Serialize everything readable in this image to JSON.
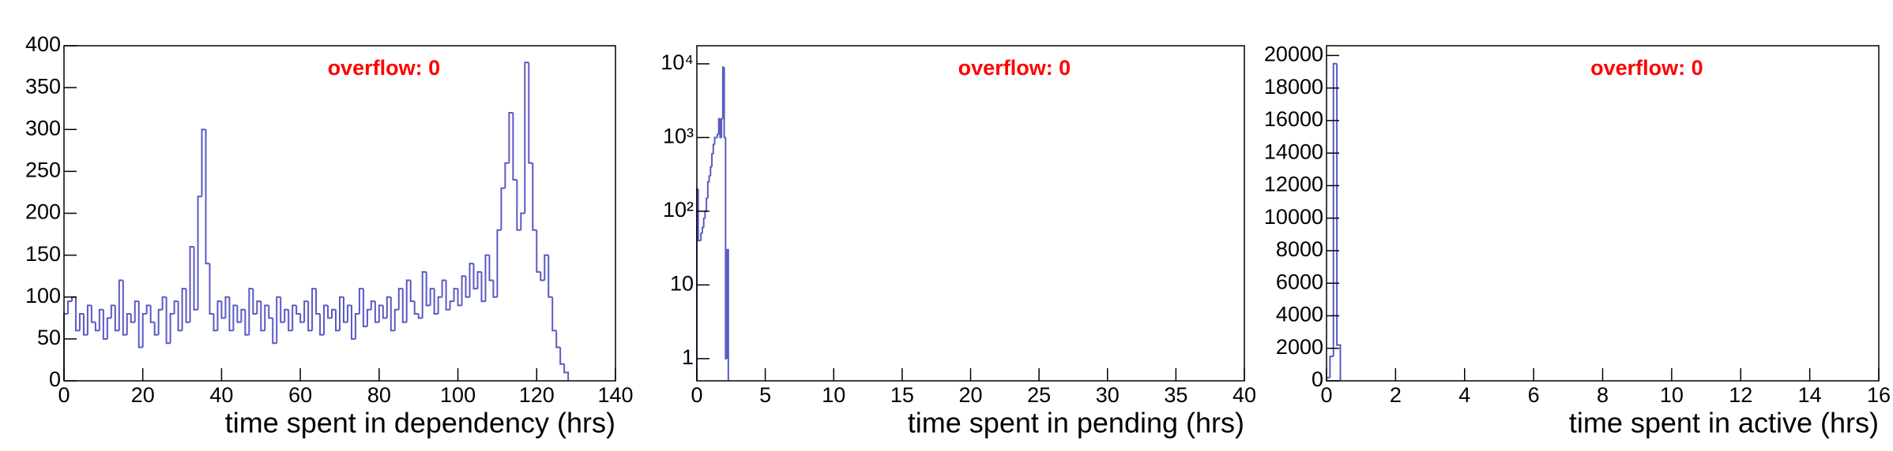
{
  "chart_data": [
    {
      "type": "histogram",
      "x_label": "time spent in dependency (hrs)",
      "annotation": "overflow: 0",
      "annotation_color": "#ff0000",
      "color": "#5a5ac4",
      "log_y": false,
      "xlim": [
        0,
        140
      ],
      "xticks": [
        0,
        20,
        40,
        60,
        80,
        100,
        120,
        140
      ],
      "ylim": [
        0,
        400
      ],
      "yticks": [
        0,
        50,
        100,
        150,
        200,
        250,
        300,
        350,
        400
      ],
      "bins": [
        0,
        1,
        2,
        3,
        4,
        5,
        6,
        7,
        8,
        9,
        10,
        11,
        12,
        13,
        14,
        15,
        16,
        17,
        18,
        19,
        20,
        21,
        22,
        23,
        24,
        25,
        26,
        27,
        28,
        29,
        30,
        31,
        32,
        33,
        34,
        35,
        36,
        37,
        38,
        39,
        40,
        41,
        42,
        43,
        44,
        45,
        46,
        47,
        48,
        49,
        50,
        51,
        52,
        53,
        54,
        55,
        56,
        57,
        58,
        59,
        60,
        61,
        62,
        63,
        64,
        65,
        66,
        67,
        68,
        69,
        70,
        71,
        72,
        73,
        74,
        75,
        76,
        77,
        78,
        79,
        80,
        81,
        82,
        83,
        84,
        85,
        86,
        87,
        88,
        89,
        90,
        91,
        92,
        93,
        94,
        95,
        96,
        97,
        98,
        99,
        100,
        101,
        102,
        103,
        104,
        105,
        106,
        107,
        108,
        109,
        110,
        111,
        112,
        113,
        114,
        115,
        116,
        117,
        118,
        119,
        120,
        121,
        122,
        123,
        124,
        125,
        126,
        127,
        128
      ],
      "values": [
        80,
        95,
        100,
        60,
        80,
        55,
        90,
        70,
        60,
        85,
        50,
        75,
        90,
        60,
        120,
        55,
        80,
        70,
        95,
        40,
        80,
        90,
        70,
        55,
        85,
        100,
        45,
        80,
        95,
        60,
        110,
        70,
        160,
        85,
        220,
        300,
        140,
        80,
        60,
        95,
        75,
        100,
        60,
        90,
        70,
        85,
        55,
        110,
        80,
        95,
        60,
        90,
        75,
        45,
        100,
        70,
        85,
        60,
        90,
        80,
        70,
        95,
        60,
        110,
        80,
        55,
        90,
        75,
        85,
        60,
        100,
        70,
        90,
        50,
        80,
        110,
        65,
        85,
        95,
        70,
        90,
        75,
        100,
        60,
        85,
        110,
        70,
        120,
        95,
        80,
        75,
        130,
        90,
        110,
        80,
        100,
        120,
        85,
        95,
        110,
        90,
        125,
        100,
        140,
        110,
        130,
        95,
        150,
        120,
        100,
        180,
        230,
        260,
        320,
        240,
        180,
        200,
        380,
        260,
        180,
        130,
        120,
        150,
        100,
        60,
        40,
        20,
        10
      ]
    },
    {
      "type": "histogram",
      "x_label": "time spent in pending (hrs)",
      "annotation": "overflow: 0",
      "annotation_color": "#ff0000",
      "color": "#5a5ac4",
      "log_y": true,
      "xlim": [
        0,
        40
      ],
      "xticks": [
        0,
        5,
        10,
        15,
        20,
        25,
        30,
        35,
        40
      ],
      "ylim": [
        0.5,
        17600
      ],
      "yticks": [
        1,
        10,
        {
          "value": 100,
          "label": "10²"
        },
        {
          "value": 1000,
          "label": "10³"
        },
        {
          "value": 10000,
          "label": "10⁴"
        }
      ],
      "bins": [
        0,
        0.1,
        0.2,
        0.3,
        0.4,
        0.5,
        0.6,
        0.7,
        0.8,
        0.9,
        1.0,
        1.1,
        1.2,
        1.3,
        1.4,
        1.5,
        1.6,
        1.7,
        1.8,
        1.9,
        2.0,
        2.1,
        2.2,
        2.3
      ],
      "values": [
        200,
        40,
        40,
        50,
        60,
        80,
        100,
        150,
        250,
        300,
        400,
        600,
        800,
        1000,
        1000,
        1100,
        1800,
        1000,
        1800,
        9000,
        1000,
        1,
        30
      ]
    },
    {
      "type": "histogram",
      "x_label": "time spent in active (hrs)",
      "annotation": "overflow: 0",
      "annotation_color": "#ff0000",
      "color": "#5a5ac4",
      "log_y": false,
      "xlim": [
        0,
        16
      ],
      "xticks": [
        0,
        2,
        4,
        6,
        8,
        10,
        12,
        14,
        16
      ],
      "ylim": [
        0,
        20600
      ],
      "yticks": [
        0,
        2000,
        4000,
        6000,
        8000,
        10000,
        12000,
        14000,
        16000,
        18000,
        20000
      ],
      "bins": [
        0,
        0.1,
        0.2,
        0.3,
        0.4
      ],
      "values": [
        200,
        1500,
        19500,
        2200
      ]
    }
  ]
}
